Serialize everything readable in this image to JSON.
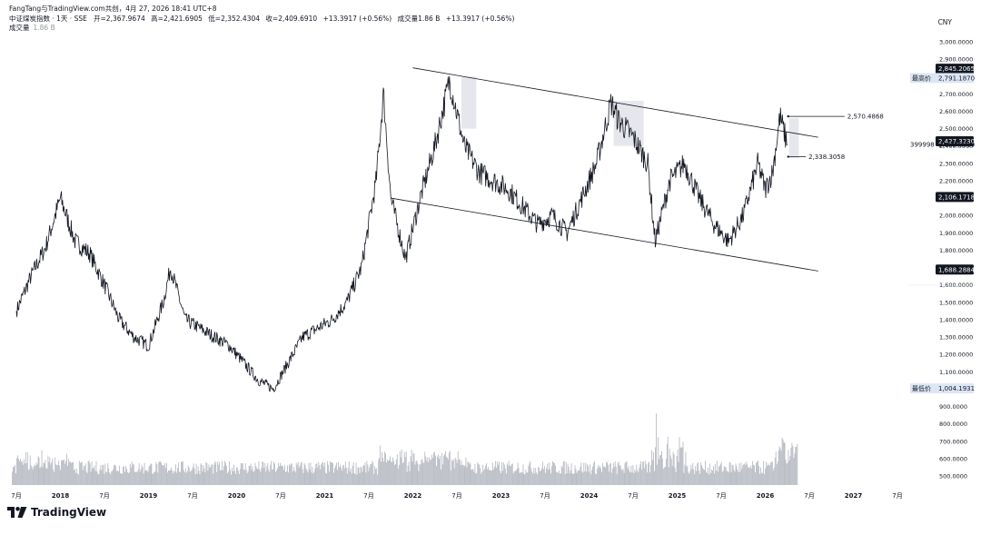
{
  "header": {
    "attribution": "FangTang与TradingView.com共创，4月 27, 2026 18:41 UTC+8",
    "symbol": "中证煤炭指数 · 1天 · SSE",
    "open_label": "开",
    "open": "2,367.9674",
    "high_label": "高",
    "high": "2,421.6905",
    "low_label": "低",
    "low": "2,352.4304",
    "close_label": "收",
    "close": "2,409.6910",
    "change": "+13.3917 (+0.56%)",
    "volume_label": "成交量",
    "volume_value": "1.86 B",
    "change2": "+13.3917 (+0.56%)",
    "vol_row_label": "成交量",
    "vol_row_value": "1.86 B",
    "currency": "CNY"
  },
  "price_axis": {
    "ticks": [
      "3,000.0000",
      "2,900.0000",
      "2,800.0000",
      "2,700.0000",
      "2,600.0000",
      "2,500.0000",
      "2,400.0000",
      "2,300.0000",
      "2,200.0000",
      "2,100.0000",
      "2,000.0000",
      "1,900.0000",
      "1,800.0000",
      "1,700.0000",
      "1,600.0000",
      "1,500.0000",
      "1,400.0000",
      "1,300.0000",
      "1,200.0000",
      "1,100.0000",
      "1,000.0000",
      "900.0000",
      "800.0000",
      "700.0000",
      "600.0000",
      "500.0000"
    ],
    "tags": {
      "t1": "2,845.2065",
      "high_label": "最高价",
      "high_value": "2,791.1870",
      "t2": "2,427.3230",
      "last_prefix": "399998",
      "last_value": "2,409.6910",
      "t3": "2,106.1718",
      "t4": "1,688.2884",
      "low_label": "最低价",
      "low_value": "1,004.1931"
    }
  },
  "annotations": {
    "upper": "2,570.4868",
    "lower": "2,338.3058"
  },
  "time_axis": [
    "7月",
    "2018",
    "7月",
    "2019",
    "7月",
    "2020",
    "7月",
    "2021",
    "7月",
    "2022",
    "7月",
    "2023",
    "7月",
    "2024",
    "7月",
    "2025",
    "7月",
    "2026",
    "7月",
    "2027",
    "7月"
  ],
  "colors": {
    "price_line": "#131722",
    "volume": "#b2b5be",
    "highlight": "#d1d4dc",
    "tag_dark": "#131722",
    "tag_light": "#dde6f5"
  },
  "logo": {
    "icon": "tradingview-logo-icon",
    "text": "TradingView"
  },
  "chart_data": {
    "type": "line",
    "title": "中证煤炭指数 · 1天 · SSE",
    "x": [
      "2017-07",
      "2017-09",
      "2017-11",
      "2018-01",
      "2018-03",
      "2018-05",
      "2018-07",
      "2018-09",
      "2018-11",
      "2019-01",
      "2019-03",
      "2019-04",
      "2019-06",
      "2019-08",
      "2019-10",
      "2019-12",
      "2020-02",
      "2020-04",
      "2020-06",
      "2020-08",
      "2020-10",
      "2020-12",
      "2021-02",
      "2021-04",
      "2021-06",
      "2021-08",
      "2021-09",
      "2021-10",
      "2021-12",
      "2022-02",
      "2022-04",
      "2022-06",
      "2022-08",
      "2022-10",
      "2022-12",
      "2023-02",
      "2023-04",
      "2023-06",
      "2023-08",
      "2023-10",
      "2023-12",
      "2024-02",
      "2024-04",
      "2024-05",
      "2024-07",
      "2024-09",
      "2024-10",
      "2024-12",
      "2025-02",
      "2025-04",
      "2025-06",
      "2025-08",
      "2025-10",
      "2025-12",
      "2026-01",
      "2026-02",
      "2026-03",
      "2026-04"
    ],
    "y": [
      1450,
      1650,
      1820,
      2100,
      1850,
      1780,
      1600,
      1400,
      1300,
      1250,
      1500,
      1700,
      1400,
      1350,
      1300,
      1250,
      1150,
      1050,
      1000,
      1150,
      1300,
      1350,
      1400,
      1500,
      1700,
      2200,
      2700,
      2100,
      1750,
      2100,
      2400,
      2780,
      2400,
      2250,
      2200,
      2150,
      2050,
      1950,
      2000,
      1900,
      2100,
      2300,
      2650,
      2550,
      2450,
      2300,
      1850,
      2200,
      2300,
      2100,
      1950,
      1850,
      2000,
      2300,
      2150,
      2250,
      2570,
      2409.691
    ],
    "volume_range": [
      500,
      1100
    ],
    "ylim": [
      500,
      3050
    ],
    "channel": {
      "upper": [
        [
          2022.0,
          2850
        ],
        [
          2026.6,
          2450
        ]
      ],
      "lower": [
        [
          2021.75,
          2100
        ],
        [
          2026.6,
          1680
        ]
      ]
    },
    "levels": [
      2845.2065,
      2791.187,
      2570.4868,
      2427.323,
      2409.691,
      2338.3058,
      2106.1718,
      1688.2884,
      1004.1931
    ]
  }
}
